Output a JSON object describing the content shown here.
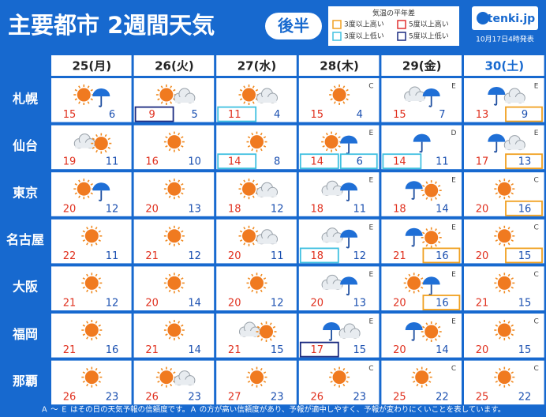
{
  "header": {
    "title": "主要都市 2週間天気",
    "badge": "後半",
    "legend": {
      "title": "気温の平年差",
      "items": [
        "3度以上高い",
        "5度以上高い",
        "3度以上低い",
        "5度以上低い"
      ]
    },
    "logo": "tenki.jp",
    "issued": "10月17日4時発表"
  },
  "table": {
    "columns": [
      "25(月)",
      "26(火)",
      "27(水)",
      "28(木)",
      "29(金)",
      "30(土)"
    ],
    "rows": [
      {
        "city": "札幌",
        "cells": [
          {
            "high": 15,
            "low": 6
          },
          {
            "high": 9,
            "low": 5
          },
          {
            "high": 11,
            "low": 4
          },
          {
            "high": 15,
            "low": 4,
            "rank": "C"
          },
          {
            "high": 15,
            "low": 7,
            "rank": "E"
          },
          {
            "high": 13,
            "low": 9,
            "rank": "E"
          }
        ]
      },
      {
        "city": "仙台",
        "cells": [
          {
            "high": 19,
            "low": 11
          },
          {
            "high": 16,
            "low": 10
          },
          {
            "high": 14,
            "low": 8
          },
          {
            "high": 14,
            "low": 6,
            "rank": "E"
          },
          {
            "high": 14,
            "low": 11,
            "rank": "D"
          },
          {
            "high": 17,
            "low": 13,
            "rank": "E"
          }
        ]
      },
      {
        "city": "東京",
        "cells": [
          {
            "high": 20,
            "low": 12
          },
          {
            "high": 20,
            "low": 13
          },
          {
            "high": 18,
            "low": 12
          },
          {
            "high": 18,
            "low": 11,
            "rank": "E"
          },
          {
            "high": 18,
            "low": 14,
            "rank": "E"
          },
          {
            "high": 20,
            "low": 16,
            "rank": "C"
          }
        ]
      },
      {
        "city": "名古屋",
        "cells": [
          {
            "high": 22,
            "low": 11
          },
          {
            "high": 21,
            "low": 12
          },
          {
            "high": 20,
            "low": 11
          },
          {
            "high": 18,
            "low": 12,
            "rank": "E"
          },
          {
            "high": 21,
            "low": 16,
            "rank": "E"
          },
          {
            "high": 20,
            "low": 15,
            "rank": "C"
          }
        ]
      },
      {
        "city": "大阪",
        "cells": [
          {
            "high": 21,
            "low": 12
          },
          {
            "high": 20,
            "low": 14
          },
          {
            "high": 20,
            "low": 12
          },
          {
            "high": 20,
            "low": 13,
            "rank": "E"
          },
          {
            "high": 20,
            "low": 16,
            "rank": "E"
          },
          {
            "high": 21,
            "low": 15,
            "rank": "C"
          }
        ]
      },
      {
        "city": "福岡",
        "cells": [
          {
            "high": 21,
            "low": 16
          },
          {
            "high": 21,
            "low": 14
          },
          {
            "high": 21,
            "low": 15
          },
          {
            "high": 17,
            "low": 15,
            "rank": "E"
          },
          {
            "high": 20,
            "low": 14,
            "rank": "E"
          },
          {
            "high": 20,
            "low": 15,
            "rank": "C"
          }
        ]
      },
      {
        "city": "那覇",
        "cells": [
          {
            "high": 26,
            "low": 23
          },
          {
            "high": 26,
            "low": 23
          },
          {
            "high": 27,
            "low": 23
          },
          {
            "high": 26,
            "low": 23,
            "rank": "C"
          },
          {
            "high": 25,
            "low": 22,
            "rank": "C"
          },
          {
            "high": 25,
            "low": 22,
            "rank": "C"
          }
        ]
      }
    ]
  },
  "footer": "Ａ ～ Ｅ はその日の天気予報の信頼度です。Ａ の方が高い信頼度があり、予報が適中しやすく、予報が変わりにくいことを表しています。"
}
